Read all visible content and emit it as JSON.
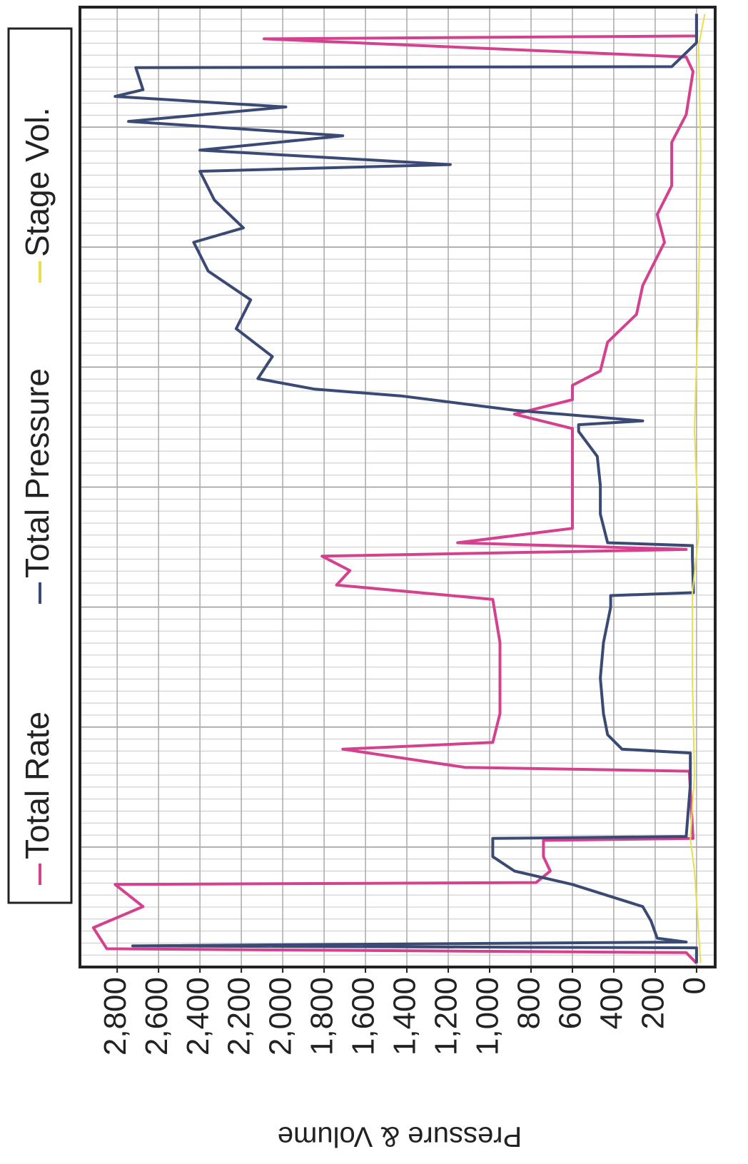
{
  "chart_data": {
    "type": "line",
    "y_label": "Pressure & Volume",
    "legend": "top",
    "grid": true,
    "xlim": [
      0,
      100
    ],
    "ylim": [
      -90,
      2980
    ],
    "yticks": [
      0,
      200,
      400,
      600,
      800,
      {
        "value": 1000,
        "label": "1,000"
      },
      {
        "value": 1200,
        "label": "1,200"
      },
      {
        "value": 1400,
        "label": "1,400"
      },
      {
        "value": 1600,
        "label": "1,600"
      },
      {
        "value": 1800,
        "label": "1,800"
      },
      {
        "value": 2000,
        "label": "2,000"
      },
      {
        "value": 2200,
        "label": "2,200"
      },
      {
        "value": 2400,
        "label": "2,400"
      },
      {
        "value": 2600,
        "label": "2,600"
      },
      {
        "value": 2800,
        "label": "2,800"
      }
    ],
    "series": [
      {
        "name": "Total Rate",
        "color": "#d4418e",
        "x": [
          0.4,
          1.5,
          1.9,
          4.1,
          6.3,
          8.6,
          8.8,
          10.0,
          11.5,
          13.2,
          13.4,
          20.4,
          20.8,
          22.7,
          23.4,
          26.4,
          33.8,
          38.3,
          39.8,
          41.3,
          42.8,
          43.5,
          44.2,
          45.7,
          48.7,
          56.1,
          57.6,
          59.1,
          60.6,
          62.1,
          65.1,
          68.0,
          71.0,
          75.5,
          78.4,
          81.4,
          85.9,
          88.8,
          93.3,
          94.8,
          96.7,
          97.0,
          99.3
        ],
        "values": [
          0,
          50,
          2850,
          2915,
          2675,
          2810,
          775,
          707,
          740,
          740,
          17,
          35,
          1120,
          1710,
          985,
          950,
          950,
          985,
          1740,
          1675,
          1810,
          50,
          1155,
          600,
          600,
          600,
          880,
          600,
          600,
          465,
          430,
          290,
          260,
          155,
          190,
          120,
          120,
          50,
          17,
          50,
          2090,
          0,
          0
        ]
      },
      {
        "name": "Total Pressure",
        "color": "#3a4a74",
        "x": [
          0.4,
          2.0,
          2.2,
          2.6,
          3.0,
          4.8,
          6.3,
          8.6,
          10.0,
          11.5,
          13.4,
          13.6,
          19.0,
          22.3,
          22.7,
          24.2,
          26.4,
          30.1,
          33.8,
          37.5,
          38.7,
          39.0,
          42.8,
          43.9,
          44.2,
          47.2,
          50.2,
          53.2,
          55.8,
          56.5,
          56.9,
          58.0,
          59.5,
          60.2,
          61.3,
          63.6,
          66.5,
          69.5,
          72.5,
          75.5,
          77.0,
          79.9,
          82.9,
          83.6,
          85.1,
          86.6,
          88.1,
          89.6,
          90.7,
          91.4,
          93.7,
          93.8,
          96.3,
          99.3
        ],
        "values": [
          0,
          0,
          2725,
          50,
          190,
          220,
          260,
          600,
          880,
          985,
          985,
          50,
          30,
          30,
          360,
          430,
          450,
          465,
          450,
          415,
          415,
          15,
          20,
          20,
          430,
          465,
          465,
          480,
          570,
          570,
          260,
          880,
          1430,
          1845,
          2120,
          2050,
          2225,
          2155,
          2360,
          2430,
          2190,
          2330,
          2400,
          1190,
          2400,
          1710,
          2745,
          1985,
          2810,
          2675,
          2710,
          120,
          0,
          0
        ]
      },
      {
        "name": "Stage Vol.",
        "color": "#e8e04a",
        "x": [
          0.4,
          10,
          13.4,
          20,
          30,
          39,
          45,
          56,
          70,
          85,
          96,
          99.3
        ],
        "values": [
          -20,
          10,
          30,
          10,
          20,
          20,
          -10,
          10,
          -10,
          -20,
          -10,
          -40
        ]
      }
    ]
  }
}
